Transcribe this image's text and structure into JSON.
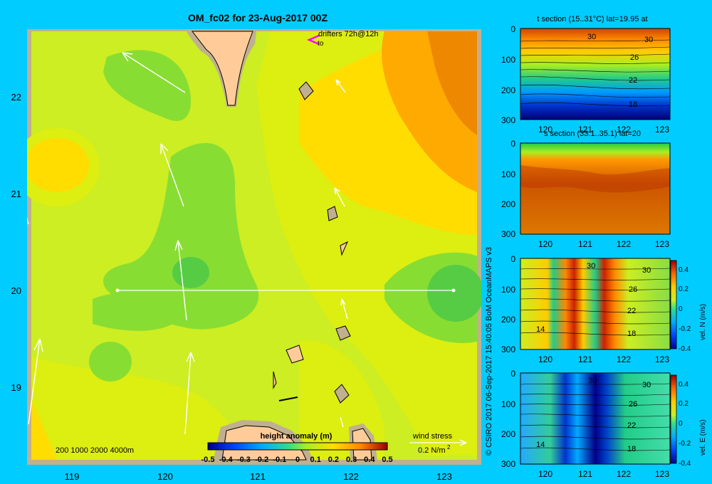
{
  "main_map": {
    "title": "OM_fc02 for 23-Aug-2017 00Z",
    "x_ticks": [
      "119",
      "120",
      "121",
      "122",
      "123"
    ],
    "y_ticks": [
      "22",
      "21",
      "20",
      "19"
    ],
    "drifters_label": "drifters 72h@12h",
    "drifters_sub": "to",
    "depth_legend": "200  1000  2000  4000m",
    "colorbar_title": "height anomaly  (m)",
    "colorbar_ticks": [
      "-0.5",
      "-0.4",
      "-0.3",
      "-0.2",
      "-0.1",
      "0",
      "0.1",
      "0.2",
      "0.3",
      "0.4",
      "0.5"
    ],
    "wind_label": "wind stress",
    "wind_scale": "0.2 N/m",
    "wind_scale_sup": "2"
  },
  "credit": "© CSIRO 2017   06-Sep-2017 15:40:05 BoM OceanMAPS v3",
  "panels": [
    {
      "title": "t section (15..31°C) lat=19.95 at",
      "y_ticks": [
        "0",
        "100",
        "200",
        "300"
      ],
      "x_ticks": [
        "120",
        "121",
        "122",
        "123"
      ],
      "contour_labels": [
        "30",
        "30",
        "26",
        "22",
        "18"
      ]
    },
    {
      "title": "s section (33.1..35.1) lat=20",
      "y_ticks": [
        "0",
        "100",
        "200",
        "300"
      ],
      "x_ticks": [
        "120",
        "121",
        "122",
        "123"
      ]
    },
    {
      "title": "",
      "y_ticks": [
        "0",
        "100",
        "200",
        "300"
      ],
      "x_ticks": [
        "120",
        "121",
        "122",
        "123"
      ],
      "contour_labels": [
        "30",
        "30",
        "26",
        "22",
        "14",
        "18"
      ],
      "cbar_label": "vel. N (m/s)",
      "cbar_ticks": [
        "0.4",
        "0.2",
        "0",
        "-0.2",
        "-0.4"
      ]
    },
    {
      "title": "",
      "y_ticks": [
        "0",
        "100",
        "200",
        "300"
      ],
      "x_ticks": [
        "120",
        "121",
        "122",
        "123"
      ],
      "contour_labels": [
        "30",
        "30",
        "26",
        "22",
        "14",
        "18"
      ],
      "cbar_label": "vel. E (m/s)",
      "cbar_ticks": [
        "0.4",
        "0.2",
        "0",
        "-0.2",
        "-0.4"
      ]
    }
  ],
  "chart_data": [
    {
      "type": "heatmap",
      "title": "OM_fc02 for 23-Aug-2017 00Z",
      "xlim": [
        118.5,
        123.5
      ],
      "ylim": [
        18.3,
        22.7
      ],
      "colorbar": "height anomaly (m)",
      "clim": [
        -0.5,
        0.5
      ],
      "section_line_lat": 20.0,
      "section_line_lon": [
        119.5,
        123.05
      ]
    },
    {
      "type": "heatmap",
      "title": "t section (15..31°C) lat=19.95 at",
      "xlim": [
        119.4,
        123.2
      ],
      "ylim": [
        300,
        0
      ],
      "contour_levels": [
        30,
        26,
        22,
        18
      ]
    },
    {
      "type": "heatmap",
      "title": "s section (33.1..35.1) lat=20",
      "xlim": [
        119.4,
        123.2
      ],
      "ylim": [
        300,
        0
      ]
    },
    {
      "type": "heatmap",
      "xlim": [
        119.4,
        123.2
      ],
      "ylim": [
        300,
        0
      ],
      "colorbar": "vel. N (m/s)",
      "clim": [
        -0.4,
        0.4
      ]
    },
    {
      "type": "heatmap",
      "xlim": [
        119.4,
        123.2
      ],
      "ylim": [
        300,
        0
      ],
      "colorbar": "vel. E (m/s)",
      "clim": [
        -0.4,
        0.4
      ]
    }
  ]
}
